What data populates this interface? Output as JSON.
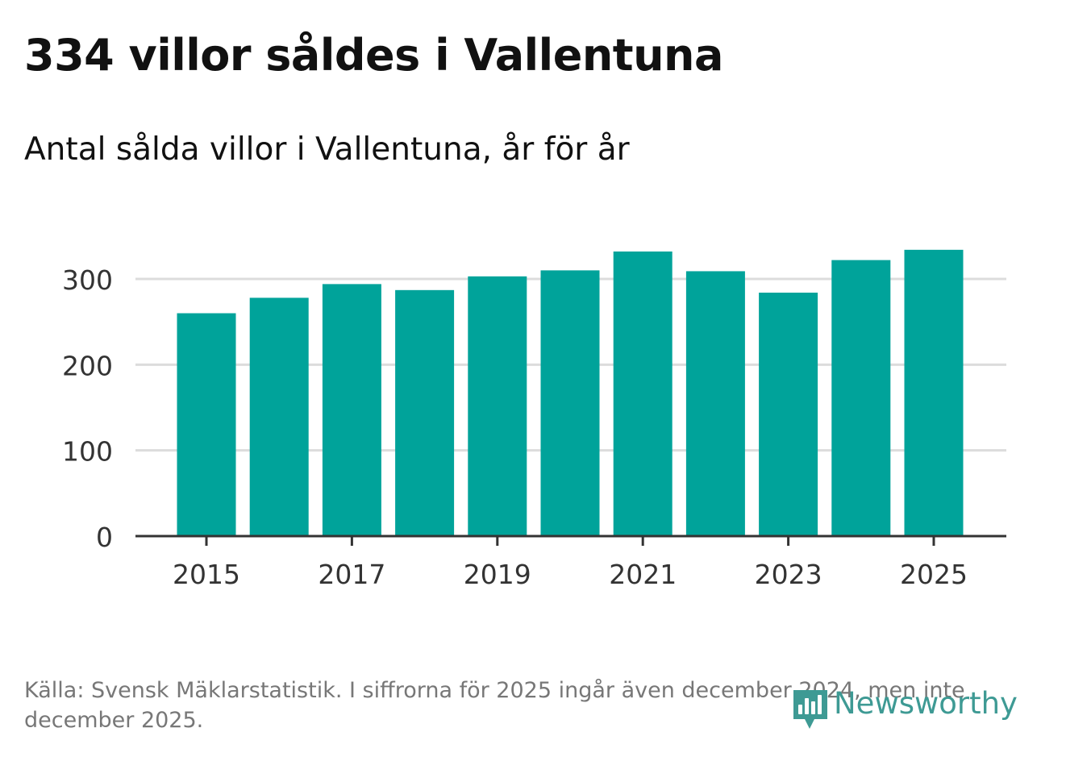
{
  "title": "334 villor såldes i Vallentuna",
  "subtitle": "Antal sålda villor i Vallentuna, år för år",
  "footer": {
    "source_note": "Källa: Svensk Mäklarstatistik. I siffrorna för 2025 ingår även december 2024, men inte december 2025."
  },
  "logo": {
    "text": "Newsworthy",
    "icon": "bar-chart-speech-bubble-icon"
  },
  "colors": {
    "bar": "#00a39a",
    "grid": "#dcdcdc",
    "axis": "#333333",
    "logo": "#3e9a94",
    "footer_text": "#777777"
  },
  "chart_data": {
    "type": "bar",
    "title": "334 villor såldes i Vallentuna",
    "subtitle": "Antal sålda villor i Vallentuna, år för år",
    "xlabel": "",
    "ylabel": "",
    "categories": [
      "2015",
      "2016",
      "2017",
      "2018",
      "2019",
      "2020",
      "2021",
      "2022",
      "2023",
      "2024",
      "2025"
    ],
    "values": [
      260,
      278,
      294,
      287,
      303,
      310,
      332,
      309,
      284,
      322,
      334
    ],
    "ylim": [
      0,
      350
    ],
    "yticks": [
      0,
      100,
      200,
      300
    ],
    "ytick_labels": [
      "0",
      "100",
      "200",
      "300"
    ],
    "xtick_labels": [
      "2015",
      "2017",
      "2019",
      "2021",
      "2023",
      "2025"
    ],
    "grid": true,
    "legend": "none"
  }
}
